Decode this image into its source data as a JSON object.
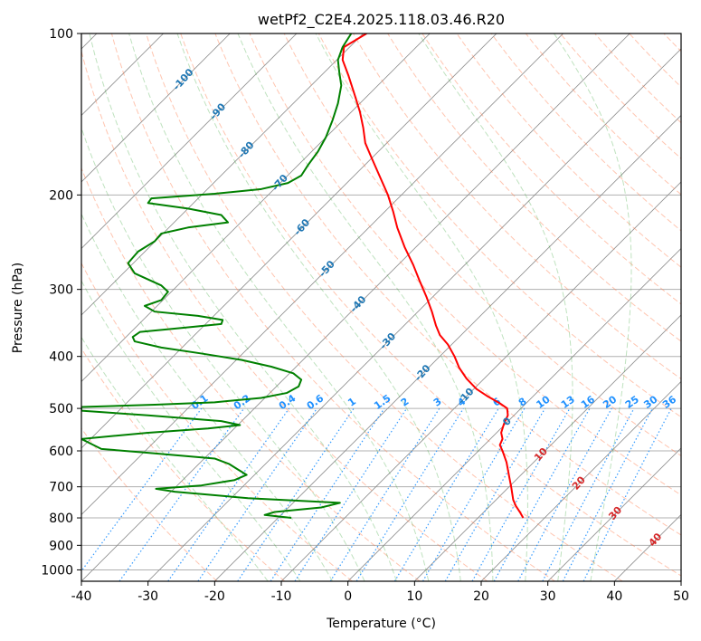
{
  "chart_data": {
    "type": "line",
    "title": "wetPf2_C2E4.2025.118.03.46.R20",
    "xlabel": "Temperature (°C)",
    "ylabel": "Pressure (hPa)",
    "xlim": [
      -40,
      50
    ],
    "ylim": [
      1050,
      100
    ],
    "y_scale": "log",
    "grid": true,
    "x_ticks": [
      "-40",
      "-30",
      "-20",
      "-10",
      "0",
      "10",
      "20",
      "30",
      "40",
      "50"
    ],
    "y_ticks": [
      "100",
      "200",
      "300",
      "400",
      "500",
      "600",
      "700",
      "800",
      "900",
      "1000"
    ],
    "colors": {
      "temperature": "#ff0000",
      "dewpoint": "#008000",
      "dry_adiabat": "#ff7f50",
      "moist_adiabat": "#2ca02c",
      "mixing_ratio": "#1e90ff",
      "skewed_isotherm": "#888888",
      "isotherm_label_cold": "#1f77b4",
      "isotherm_label_warm": "#d62728"
    },
    "isotherm_labels": [
      {
        "t": -100,
        "p": 122,
        "text": "-100"
      },
      {
        "t": -90,
        "p": 140,
        "text": "-90"
      },
      {
        "t": -80,
        "p": 165,
        "text": "-80"
      },
      {
        "t": -70,
        "p": 190,
        "text": "-70"
      },
      {
        "t": -60,
        "p": 230,
        "text": "-60"
      },
      {
        "t": -50,
        "p": 275,
        "text": "-50"
      },
      {
        "t": -40,
        "p": 320,
        "text": "-40"
      },
      {
        "t": -30,
        "p": 375,
        "text": "-30"
      },
      {
        "t": -20,
        "p": 430,
        "text": "-20"
      },
      {
        "t": -10,
        "p": 475,
        "text": "-10"
      },
      {
        "t": 0,
        "p": 530,
        "text": "0"
      },
      {
        "t": 10,
        "p": 610,
        "text": "10"
      },
      {
        "t": 20,
        "p": 690,
        "text": "20"
      },
      {
        "t": 30,
        "p": 785,
        "text": "30"
      },
      {
        "t": 40,
        "p": 880,
        "text": "40"
      }
    ],
    "mixing_ratio_labels": [
      {
        "w": 0.1,
        "text": "0.1"
      },
      {
        "w": 0.2,
        "text": "0.2"
      },
      {
        "w": 0.4,
        "text": "0.4"
      },
      {
        "w": 0.6,
        "text": "0.6"
      },
      {
        "w": 1,
        "text": "1"
      },
      {
        "w": 1.5,
        "text": "1.5"
      },
      {
        "w": 2,
        "text": "2"
      },
      {
        "w": 3,
        "text": "3"
      },
      {
        "w": 4,
        "text": "4"
      },
      {
        "w": 6,
        "text": "6"
      },
      {
        "w": 8,
        "text": "8"
      },
      {
        "w": 10,
        "text": "10"
      },
      {
        "w": 13,
        "text": "13"
      },
      {
        "w": 16,
        "text": "16"
      },
      {
        "w": 20,
        "text": "20"
      },
      {
        "w": 25,
        "text": "25"
      },
      {
        "w": 30,
        "text": "30"
      },
      {
        "w": 36,
        "text": "36"
      }
    ],
    "series": [
      {
        "key": "temperature",
        "points": [
          {
            "p": 800,
            "x": 26.3
          },
          {
            "p": 780,
            "x": 25.8
          },
          {
            "p": 760,
            "x": 25.2
          },
          {
            "p": 740,
            "x": 24.8
          },
          {
            "p": 700,
            "x": 24.5
          },
          {
            "p": 670,
            "x": 24.2
          },
          {
            "p": 630,
            "x": 23.8
          },
          {
            "p": 600,
            "x": 23.2
          },
          {
            "p": 585,
            "x": 22.8
          },
          {
            "p": 570,
            "x": 23.2
          },
          {
            "p": 555,
            "x": 23.0
          },
          {
            "p": 535,
            "x": 23.4
          },
          {
            "p": 515,
            "x": 24.0
          },
          {
            "p": 500,
            "x": 23.9
          },
          {
            "p": 490,
            "x": 22.9
          },
          {
            "p": 475,
            "x": 21.0
          },
          {
            "p": 460,
            "x": 19.3
          },
          {
            "p": 440,
            "x": 17.8
          },
          {
            "p": 420,
            "x": 16.7
          },
          {
            "p": 400,
            "x": 16.0
          },
          {
            "p": 380,
            "x": 15.0
          },
          {
            "p": 365,
            "x": 13.8
          },
          {
            "p": 350,
            "x": 13.2
          },
          {
            "p": 330,
            "x": 12.6
          },
          {
            "p": 310,
            "x": 11.8
          },
          {
            "p": 290,
            "x": 10.8
          },
          {
            "p": 270,
            "x": 9.8
          },
          {
            "p": 250,
            "x": 8.5
          },
          {
            "p": 230,
            "x": 7.4
          },
          {
            "p": 215,
            "x": 6.8
          },
          {
            "p": 200,
            "x": 6.0
          },
          {
            "p": 185,
            "x": 4.8
          },
          {
            "p": 170,
            "x": 3.5
          },
          {
            "p": 160,
            "x": 2.6
          },
          {
            "p": 150,
            "x": 2.3
          },
          {
            "p": 140,
            "x": 1.8
          },
          {
            "p": 130,
            "x": 1.0
          },
          {
            "p": 120,
            "x": 0.1
          },
          {
            "p": 112,
            "x": -0.8
          },
          {
            "p": 106,
            "x": -0.6
          },
          {
            "p": 100,
            "x": 2.8
          }
        ]
      },
      {
        "key": "dewpoint",
        "points": [
          {
            "p": 800,
            "x": -8.5
          },
          {
            "p": 790,
            "x": -12.5
          },
          {
            "p": 780,
            "x": -11.0
          },
          {
            "p": 765,
            "x": -4.0
          },
          {
            "p": 750,
            "x": -1.2
          },
          {
            "p": 735,
            "x": -15.0
          },
          {
            "p": 715,
            "x": -26.0
          },
          {
            "p": 706,
            "x": -28.8
          },
          {
            "p": 696,
            "x": -22.0
          },
          {
            "p": 680,
            "x": -17.0
          },
          {
            "p": 665,
            "x": -15.2
          },
          {
            "p": 650,
            "x": -16.5
          },
          {
            "p": 635,
            "x": -17.8
          },
          {
            "p": 620,
            "x": -20.0
          },
          {
            "p": 605,
            "x": -30.0
          },
          {
            "p": 595,
            "x": -37.0
          },
          {
            "p": 585,
            "x": -38.2
          },
          {
            "p": 570,
            "x": -40.0
          },
          {
            "p": 555,
            "x": -30.0
          },
          {
            "p": 545,
            "x": -21.0
          },
          {
            "p": 537,
            "x": -16.2
          },
          {
            "p": 528,
            "x": -19.0
          },
          {
            "p": 515,
            "x": -30.0
          },
          {
            "p": 505,
            "x": -40.0
          },
          {
            "p": 497,
            "x": -40.0
          },
          {
            "p": 492,
            "x": -29.0
          },
          {
            "p": 487,
            "x": -20.0
          },
          {
            "p": 478,
            "x": -13.0
          },
          {
            "p": 468,
            "x": -9.2
          },
          {
            "p": 455,
            "x": -7.4
          },
          {
            "p": 442,
            "x": -7.0
          },
          {
            "p": 430,
            "x": -8.2
          },
          {
            "p": 418,
            "x": -11.5
          },
          {
            "p": 406,
            "x": -16.0
          },
          {
            "p": 395,
            "x": -22.0
          },
          {
            "p": 385,
            "x": -28.0
          },
          {
            "p": 375,
            "x": -32.0
          },
          {
            "p": 368,
            "x": -32.3
          },
          {
            "p": 360,
            "x": -31.2
          },
          {
            "p": 354,
            "x": -25.0
          },
          {
            "p": 348,
            "x": -19.0
          },
          {
            "p": 342,
            "x": -18.8
          },
          {
            "p": 336,
            "x": -22.5
          },
          {
            "p": 330,
            "x": -29.0
          },
          {
            "p": 322,
            "x": -30.5
          },
          {
            "p": 314,
            "x": -28.0
          },
          {
            "p": 303,
            "x": -27.0
          },
          {
            "p": 295,
            "x": -28.0
          },
          {
            "p": 280,
            "x": -32.0
          },
          {
            "p": 268,
            "x": -33.0
          },
          {
            "p": 255,
            "x": -31.5
          },
          {
            "p": 244,
            "x": -29.0
          },
          {
            "p": 236,
            "x": -28.0
          },
          {
            "p": 230,
            "x": -24.0
          },
          {
            "p": 225,
            "x": -18.0
          },
          {
            "p": 218,
            "x": -19.0
          },
          {
            "p": 212,
            "x": -24.0
          },
          {
            "p": 207,
            "x": -30.0
          },
          {
            "p": 203,
            "x": -29.5
          },
          {
            "p": 199,
            "x": -20.0
          },
          {
            "p": 195,
            "x": -13.0
          },
          {
            "p": 190,
            "x": -9.0
          },
          {
            "p": 184,
            "x": -7.0
          },
          {
            "p": 176,
            "x": -6.0
          },
          {
            "p": 166,
            "x": -4.5
          },
          {
            "p": 156,
            "x": -3.3
          },
          {
            "p": 145,
            "x": -2.3
          },
          {
            "p": 135,
            "x": -1.5
          },
          {
            "p": 125,
            "x": -1.0
          },
          {
            "p": 118,
            "x": -1.3
          },
          {
            "p": 112,
            "x": -1.5
          },
          {
            "p": 106,
            "x": -0.8
          },
          {
            "p": 100,
            "x": 0.5
          }
        ]
      }
    ]
  }
}
